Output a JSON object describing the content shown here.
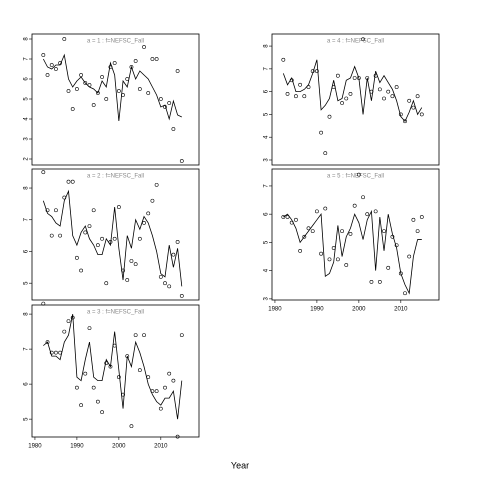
{
  "x_label": "Year",
  "chart_data": [
    {
      "type": "line",
      "title": "a = 1  :  f=NEFSC_Fall",
      "x": [
        1982,
        1983,
        1984,
        1985,
        1986,
        1987,
        1988,
        1989,
        1990,
        1991,
        1992,
        1993,
        1994,
        1995,
        1996,
        1997,
        1998,
        1999,
        2000,
        2001,
        2002,
        2003,
        2004,
        2005,
        2006,
        2007,
        2008,
        2009,
        2010,
        2011,
        2012,
        2013,
        2014,
        2015
      ],
      "series": [
        {
          "style": "line",
          "color": "#000000",
          "values": [
            7.0,
            6.6,
            6.5,
            6.7,
            6.7,
            7.2,
            6.0,
            5.6,
            5.9,
            6.1,
            5.8,
            5.6,
            5.5,
            5.3,
            5.9,
            5.6,
            6.8,
            6.2,
            3.9,
            5.9,
            5.6,
            6.6,
            6.0,
            6.4,
            6.2,
            6.0,
            5.6,
            5.2,
            4.6,
            4.7,
            4.0,
            4.9,
            4.2,
            4.1
          ]
        },
        {
          "style": "points",
          "color": "#000000",
          "values": [
            7.2,
            6.2,
            6.7,
            6.5,
            6.8,
            8.0,
            5.4,
            4.5,
            5.5,
            6.2,
            5.8,
            5.7,
            4.7,
            5.3,
            6.1,
            5.0,
            6.6,
            6.8,
            5.4,
            5.2,
            6.0,
            6.6,
            6.9,
            5.5,
            7.6,
            5.3,
            7.0,
            7.0,
            5.0,
            4.6,
            4.8,
            3.5,
            6.4,
            1.9
          ]
        }
      ],
      "xlim": [
        1979.3,
        2019.1
      ],
      "ylim": [
        1.7,
        8.25
      ],
      "yticks": [
        2,
        3,
        4,
        5,
        6,
        7,
        8
      ]
    },
    {
      "type": "line",
      "title": "a = 2  :  f=NEFSC_Fall",
      "x": [
        1982,
        1983,
        1984,
        1985,
        1986,
        1987,
        1988,
        1989,
        1990,
        1991,
        1992,
        1993,
        1994,
        1995,
        1996,
        1997,
        1998,
        1999,
        2000,
        2001,
        2002,
        2003,
        2004,
        2005,
        2006,
        2007,
        2008,
        2009,
        2010,
        2011,
        2012,
        2013,
        2014,
        2015
      ],
      "series": [
        {
          "style": "line",
          "color": "#000000",
          "values": [
            7.6,
            7.2,
            7.1,
            6.9,
            6.8,
            7.6,
            7.9,
            6.5,
            6.2,
            6.6,
            6.8,
            6.4,
            6.2,
            5.9,
            5.9,
            6.4,
            6.2,
            7.4,
            6.1,
            5.1,
            6.5,
            6.1,
            7.0,
            6.7,
            7.1,
            6.9,
            6.5,
            6.0,
            5.3,
            5.2,
            6.2,
            5.5,
            6.1,
            4.9
          ]
        },
        {
          "style": "points",
          "color": "#000000",
          "values": [
            8.5,
            7.3,
            6.5,
            7.3,
            6.5,
            7.7,
            8.2,
            8.2,
            5.8,
            5.4,
            6.6,
            6.8,
            7.3,
            6.2,
            6.4,
            5.0,
            6.3,
            6.4,
            7.4,
            5.4,
            5.1,
            5.7,
            5.6,
            6.4,
            6.9,
            7.2,
            7.6,
            8.1,
            5.2,
            5.0,
            4.9,
            5.9,
            6.3,
            4.6
          ]
        }
      ],
      "xlim": [
        1979.3,
        2019.1
      ],
      "ylim": [
        4.47,
        8.6
      ],
      "yticks": [
        5,
        6,
        7,
        8
      ]
    },
    {
      "type": "line",
      "title": "a = 3  :  f=NEFSC_Fall",
      "x": [
        1982,
        1983,
        1984,
        1985,
        1986,
        1987,
        1988,
        1989,
        1990,
        1991,
        1992,
        1993,
        1994,
        1995,
        1996,
        1997,
        1998,
        1999,
        2000,
        2001,
        2002,
        2003,
        2004,
        2005,
        2006,
        2007,
        2008,
        2009,
        2010,
        2011,
        2012,
        2013,
        2014,
        2015
      ],
      "series": [
        {
          "style": "line",
          "color": "#000000",
          "values": [
            7.1,
            7.2,
            6.8,
            6.8,
            6.7,
            7.2,
            7.4,
            8.0,
            6.2,
            6.1,
            6.7,
            7.2,
            6.2,
            6.1,
            6.1,
            6.7,
            6.5,
            7.5,
            6.4,
            5.3,
            6.8,
            6.5,
            7.2,
            6.9,
            6.5,
            6.0,
            5.7,
            5.5,
            5.4,
            5.6,
            5.6,
            5.8,
            5.0,
            6.1
          ]
        },
        {
          "style": "points",
          "color": "#000000",
          "values": [
            8.3,
            7.2,
            6.9,
            6.9,
            6.9,
            7.5,
            7.8,
            7.9,
            5.9,
            5.4,
            6.3,
            7.6,
            5.9,
            5.5,
            5.2,
            6.6,
            6.5,
            7.1,
            6.2,
            5.7,
            6.8,
            4.8,
            7.4,
            6.4,
            7.4,
            6.2,
            5.8,
            5.8,
            5.3,
            5.9,
            6.3,
            6.1,
            4.5,
            7.4
          ]
        }
      ],
      "xlim": [
        1979.3,
        2019.1
      ],
      "ylim": [
        4.49,
        8.26
      ],
      "yticks": [
        5,
        6,
        7,
        8
      ],
      "xticks": [
        1980,
        1990,
        2000,
        2010
      ]
    },
    {
      "type": "line",
      "title": "a = 4  :  f=NEFSC_Fall",
      "x": [
        1982,
        1983,
        1984,
        1985,
        1986,
        1987,
        1988,
        1989,
        1990,
        1991,
        1992,
        1993,
        1994,
        1995,
        1996,
        1997,
        1998,
        1999,
        2000,
        2001,
        2002,
        2003,
        2004,
        2005,
        2006,
        2007,
        2008,
        2009,
        2010,
        2011,
        2012,
        2013,
        2014,
        2015
      ],
      "series": [
        {
          "style": "line",
          "color": "#000000",
          "values": [
            6.8,
            6.3,
            6.6,
            6.0,
            6.0,
            6.1,
            6.3,
            6.8,
            7.4,
            5.2,
            5.4,
            5.7,
            6.5,
            5.6,
            5.7,
            6.5,
            6.6,
            7.1,
            6.6,
            5.0,
            6.6,
            5.6,
            6.9,
            6.4,
            6.7,
            6.4,
            6.1,
            5.6,
            4.9,
            4.7,
            5.1,
            5.6,
            5.0,
            5.3
          ]
        },
        {
          "style": "points",
          "color": "#000000",
          "values": [
            7.4,
            5.9,
            6.5,
            5.8,
            6.3,
            5.8,
            6.2,
            6.9,
            6.9,
            4.2,
            3.3,
            4.9,
            6.2,
            6.7,
            5.5,
            5.7,
            5.9,
            6.6,
            6.6,
            8.3,
            6.6,
            6.0,
            6.7,
            6.1,
            5.7,
            6.0,
            5.8,
            6.2,
            5.0,
            4.7,
            5.6,
            5.3,
            5.8,
            5.0
          ]
        }
      ],
      "xlim": [
        1979.3,
        2019.1
      ],
      "ylim": [
        2.78,
        8.53
      ],
      "yticks": [
        3,
        4,
        5,
        6,
        7,
        8
      ]
    },
    {
      "type": "line",
      "title": "a = 5  :  f=NEFSC_Fall",
      "x": [
        1982,
        1983,
        1984,
        1985,
        1986,
        1987,
        1988,
        1989,
        1990,
        1991,
        1992,
        1993,
        1994,
        1995,
        1996,
        1997,
        1998,
        1999,
        2000,
        2001,
        2002,
        2003,
        2004,
        2005,
        2006,
        2007,
        2008,
        2009,
        2010,
        2011,
        2012,
        2013,
        2014,
        2015
      ],
      "series": [
        {
          "style": "line",
          "color": "#000000",
          "values": [
            5.9,
            6.0,
            5.8,
            5.5,
            5.0,
            5.2,
            5.4,
            5.6,
            5.8,
            6.0,
            3.8,
            3.9,
            4.3,
            5.6,
            4.5,
            5.2,
            5.5,
            6.0,
            5.7,
            5.1,
            5.8,
            6.1,
            4.0,
            5.9,
            4.7,
            6.0,
            5.3,
            4.8,
            3.9,
            3.5,
            3.2,
            4.5,
            5.1,
            5.1
          ]
        },
        {
          "style": "points",
          "color": "#000000",
          "values": [
            5.9,
            5.9,
            5.7,
            5.8,
            4.7,
            5.2,
            5.5,
            5.4,
            6.1,
            4.6,
            6.2,
            4.4,
            4.8,
            4.4,
            5.4,
            4.2,
            5.3,
            6.3,
            7.4,
            6.6,
            6.0,
            3.6,
            6.1,
            3.6,
            5.4,
            4.1,
            5.2,
            4.9,
            3.9,
            3.2,
            4.5,
            5.8,
            5.4,
            5.9
          ]
        }
      ],
      "xlim": [
        1979.3,
        2019.1
      ],
      "ylim": [
        2.96,
        7.6
      ],
      "yticks": [
        3,
        4,
        5,
        6,
        7
      ],
      "xticks": [
        1980,
        1990,
        2000,
        2010
      ]
    }
  ]
}
